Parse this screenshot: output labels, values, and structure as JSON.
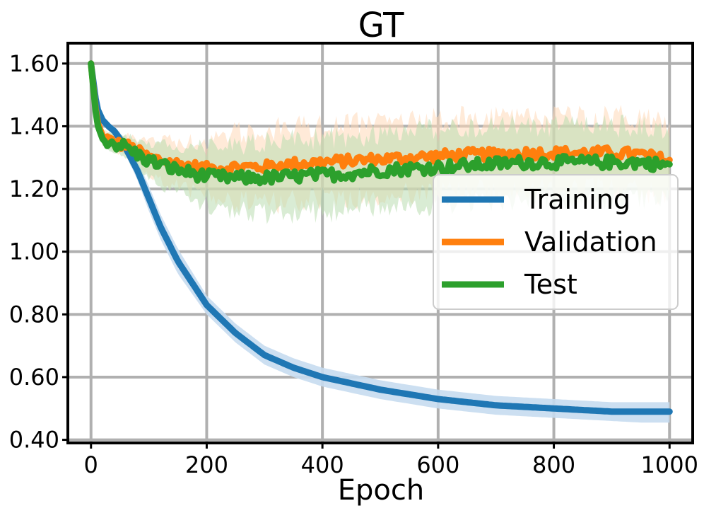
{
  "chart_data": {
    "type": "line",
    "title": "GT",
    "xlabel": "Epoch",
    "ylabel": "",
    "xlim": [
      -40,
      1040
    ],
    "ylim": [
      0.39,
      1.665
    ],
    "xticks": [
      0,
      200,
      400,
      600,
      800,
      1000
    ],
    "xtick_labels": [
      "0",
      "200",
      "400",
      "600",
      "800",
      "1000"
    ],
    "yticks": [
      0.4,
      0.6,
      0.8,
      1.0,
      1.2,
      1.4,
      1.6
    ],
    "ytick_labels": [
      "0.40",
      "0.60",
      "0.80",
      "1.00",
      "1.20",
      "1.40",
      "1.60"
    ],
    "grid": true,
    "legend_position": "center-right",
    "series": [
      {
        "name": "Training",
        "color": "#1f77b4",
        "band_color": "#c6dcef",
        "x": [
          0,
          10,
          20,
          30,
          40,
          50,
          60,
          80,
          100,
          120,
          150,
          200,
          250,
          300,
          350,
          400,
          450,
          500,
          600,
          700,
          800,
          850,
          900,
          950,
          1000
        ],
        "values": [
          1.6,
          1.46,
          1.42,
          1.4,
          1.385,
          1.36,
          1.33,
          1.26,
          1.17,
          1.08,
          0.97,
          0.83,
          0.74,
          0.67,
          0.63,
          0.6,
          0.58,
          0.56,
          0.53,
          0.51,
          0.5,
          0.495,
          0.49,
          0.49,
          0.49
        ],
        "band_lower": [
          1.6,
          1.45,
          1.41,
          1.39,
          1.37,
          1.34,
          1.31,
          1.23,
          1.13,
          1.04,
          0.93,
          0.8,
          0.71,
          0.64,
          0.6,
          0.57,
          0.55,
          0.53,
          0.5,
          0.48,
          0.47,
          0.465,
          0.46,
          0.455,
          0.455
        ],
        "band_upper": [
          1.6,
          1.47,
          1.43,
          1.41,
          1.4,
          1.38,
          1.35,
          1.29,
          1.21,
          1.12,
          1.01,
          0.86,
          0.77,
          0.7,
          0.66,
          0.63,
          0.61,
          0.59,
          0.56,
          0.54,
          0.53,
          0.525,
          0.52,
          0.52,
          0.52
        ]
      },
      {
        "name": "Validation",
        "color": "#ff7f0e",
        "band_color": "#ffd9b8",
        "x": [
          0,
          10,
          20,
          40,
          60,
          80,
          100,
          150,
          200,
          250,
          300,
          350,
          400,
          450,
          500,
          550,
          600,
          650,
          700,
          750,
          800,
          850,
          900,
          950,
          1000
        ],
        "values": [
          1.6,
          1.42,
          1.37,
          1.345,
          1.34,
          1.32,
          1.3,
          1.28,
          1.265,
          1.27,
          1.27,
          1.28,
          1.285,
          1.29,
          1.295,
          1.3,
          1.305,
          1.31,
          1.31,
          1.315,
          1.315,
          1.315,
          1.315,
          1.31,
          1.29
        ],
        "noise": 0.018,
        "band_halfwidth": [
          0.0,
          0.01,
          0.02,
          0.03,
          0.04,
          0.05,
          0.06,
          0.08,
          0.1,
          0.12,
          0.13,
          0.13,
          0.13,
          0.13,
          0.13,
          0.13,
          0.13,
          0.13,
          0.13,
          0.13,
          0.13,
          0.13,
          0.13,
          0.13,
          0.13
        ]
      },
      {
        "name": "Test",
        "color": "#2ca02c",
        "band_color": "#b9dcb0",
        "x": [
          0,
          10,
          20,
          40,
          60,
          80,
          100,
          150,
          200,
          250,
          300,
          350,
          400,
          450,
          500,
          550,
          600,
          650,
          700,
          750,
          800,
          850,
          900,
          950,
          1000
        ],
        "values": [
          1.6,
          1.41,
          1.36,
          1.345,
          1.335,
          1.31,
          1.29,
          1.26,
          1.24,
          1.235,
          1.235,
          1.24,
          1.245,
          1.25,
          1.26,
          1.265,
          1.27,
          1.275,
          1.28,
          1.285,
          1.285,
          1.285,
          1.285,
          1.285,
          1.275
        ],
        "noise": 0.02,
        "band_halfwidth": [
          0.0,
          0.01,
          0.02,
          0.03,
          0.04,
          0.05,
          0.06,
          0.08,
          0.1,
          0.12,
          0.13,
          0.13,
          0.13,
          0.13,
          0.13,
          0.13,
          0.13,
          0.13,
          0.13,
          0.13,
          0.13,
          0.13,
          0.13,
          0.13,
          0.13
        ]
      }
    ]
  }
}
